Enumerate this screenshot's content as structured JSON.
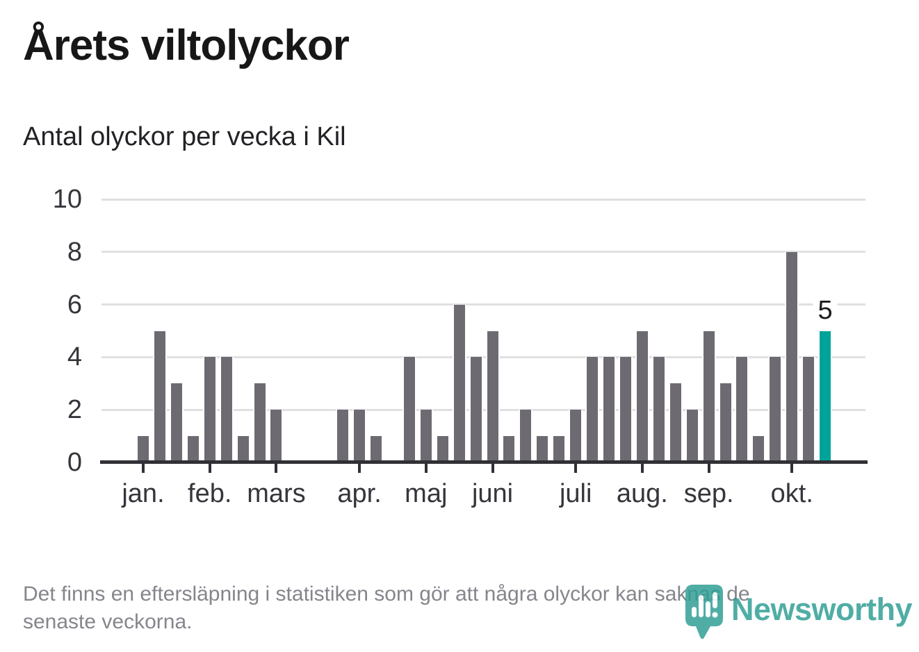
{
  "title": "Årets viltolyckor",
  "subtitle": "Antal olyckor per vecka i Kil",
  "footer": {
    "lines": [
      "Det finns en eftersläpning i statistiken som gör att några olyckor kan saknas de",
      "senaste veckorna."
    ]
  },
  "logo": {
    "text": "Newsworthy",
    "color": "#2f9e94",
    "icon": "newsworthy-pin-barchart-icon"
  },
  "chart_data": {
    "type": "bar",
    "title": "Årets viltolyckor",
    "subtitle": "Antal olyckor per vecka i Kil",
    "x_unit": "vecka",
    "weeks": 42,
    "values": [
      1,
      5,
      3,
      1,
      4,
      4,
      1,
      3,
      2,
      0,
      0,
      0,
      2,
      2,
      1,
      0,
      4,
      2,
      1,
      6,
      4,
      5,
      1,
      2,
      1,
      1,
      2,
      4,
      4,
      4,
      5,
      4,
      3,
      2,
      5,
      3,
      4,
      1,
      4,
      8,
      4,
      5
    ],
    "month_ticks": [
      {
        "label": "jan.",
        "slot": 0
      },
      {
        "label": "feb.",
        "slot": 4
      },
      {
        "label": "mars",
        "slot": 8
      },
      {
        "label": "apr.",
        "slot": 13
      },
      {
        "label": "maj",
        "slot": 17
      },
      {
        "label": "juni",
        "slot": 21
      },
      {
        "label": "juli",
        "slot": 26
      },
      {
        "label": "aug.",
        "slot": 30
      },
      {
        "label": "sep.",
        "slot": 34
      },
      {
        "label": "okt.",
        "slot": 39
      }
    ],
    "yticks": [
      0,
      2,
      4,
      6,
      8,
      10
    ],
    "ylim": [
      0,
      10
    ],
    "grid": true,
    "legend": "none",
    "highlight": {
      "index": 41,
      "label": "5"
    },
    "colors": {
      "bar": "#6e6a72",
      "highlight": "#00a39a",
      "axis": "#303036",
      "grid": "#e0e0e1",
      "tick_label": "#35353b",
      "value_label": "#1b1b1b"
    }
  }
}
